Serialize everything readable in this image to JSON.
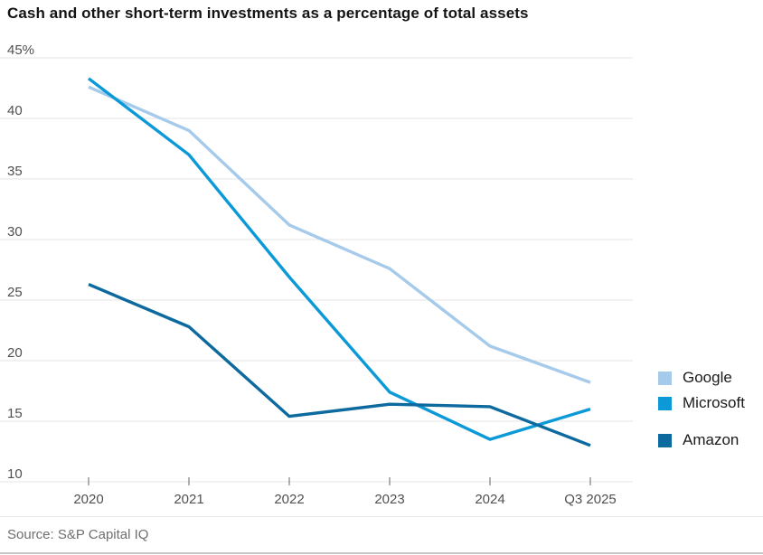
{
  "title": "Cash and other short-term investments as a percentage of total assets",
  "source": "Source: S&P Capital IQ",
  "chart_data": {
    "type": "line",
    "categories": [
      "2020",
      "2021",
      "2022",
      "2023",
      "2024",
      "Q3 2025"
    ],
    "series": [
      {
        "name": "Google",
        "color": "#a6cbea",
        "values": [
          42.6,
          39.0,
          31.2,
          27.6,
          21.2,
          18.2
        ]
      },
      {
        "name": "Microsoft",
        "color": "#0b99d8",
        "values": [
          43.3,
          37.0,
          26.9,
          17.4,
          13.5,
          16.0
        ]
      },
      {
        "name": "Amazon",
        "color": "#0d6a9e",
        "values": [
          26.3,
          22.8,
          15.4,
          16.4,
          16.2,
          13.0
        ]
      }
    ],
    "ylim": [
      10,
      45
    ],
    "ytick_step": 5,
    "ytick_top_label": "45%",
    "grid": true,
    "legend_position": "right",
    "unit": "percent of total assets"
  }
}
